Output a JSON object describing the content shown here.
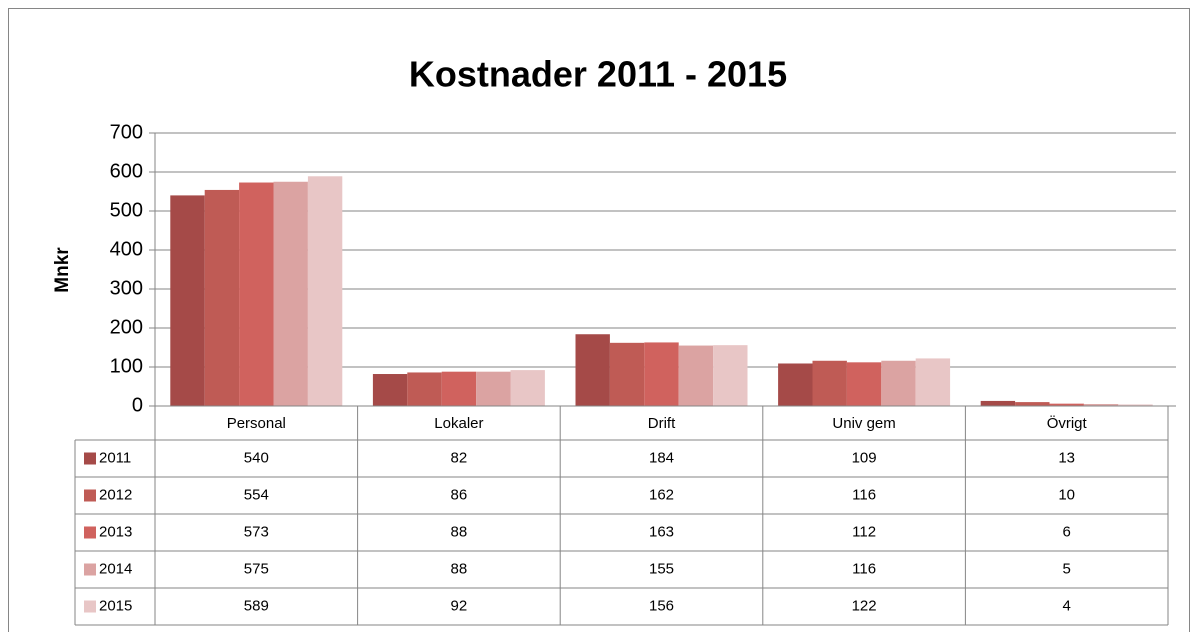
{
  "chart_data": {
    "type": "bar",
    "title": "Kostnader 2011 - 2015",
    "y_label": "Mnkr",
    "categories": [
      "Personal",
      "Lokaler",
      "Drift",
      "Univ gem",
      "Övrigt"
    ],
    "series": [
      {
        "name": "2011",
        "color": "#a54a48",
        "values": [
          540,
          82,
          184,
          109,
          13
        ]
      },
      {
        "name": "2012",
        "color": "#bf5b55",
        "values": [
          554,
          86,
          162,
          116,
          10
        ]
      },
      {
        "name": "2013",
        "color": "#d0625e",
        "values": [
          573,
          88,
          163,
          112,
          6
        ]
      },
      {
        "name": "2014",
        "color": "#dba3a2",
        "values": [
          575,
          88,
          155,
          116,
          5
        ]
      },
      {
        "name": "2015",
        "color": "#e8c6c6",
        "values": [
          589,
          92,
          156,
          122,
          4
        ]
      }
    ],
    "ylim": [
      0,
      700
    ],
    "yticks": [
      0,
      100,
      200,
      300,
      400,
      500,
      600,
      700
    ],
    "grid": true
  }
}
